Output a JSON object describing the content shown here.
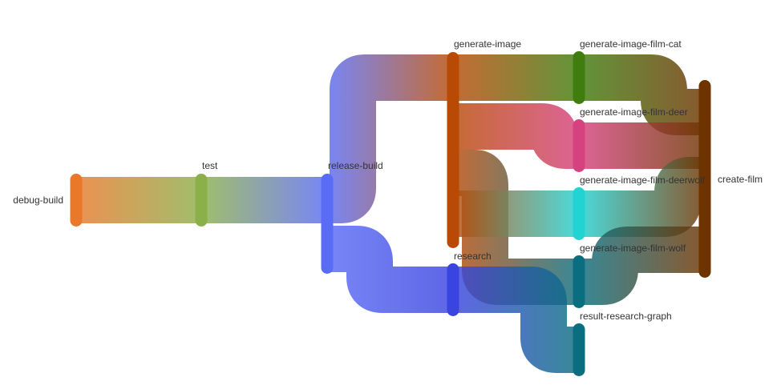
{
  "chart_data": {
    "type": "sankey",
    "nodes": [
      {
        "id": "debug-build",
        "label": "debug-build",
        "color": "#E8792A"
      },
      {
        "id": "test",
        "label": "test",
        "color": "#8BB04A"
      },
      {
        "id": "release-build",
        "label": "release-build",
        "color": "#5A6BF5"
      },
      {
        "id": "generate-image",
        "label": "generate-image",
        "color": "#B84A06"
      },
      {
        "id": "research",
        "label": "research",
        "color": "#3A44E0"
      },
      {
        "id": "generate-image-film-cat",
        "label": "generate-image-film-cat",
        "color": "#3F7D0E"
      },
      {
        "id": "generate-image-film-deer",
        "label": "generate-image-film-deer",
        "color": "#D6417F"
      },
      {
        "id": "generate-image-film-deerwolf",
        "label": "generate-image-film-deerwolf",
        "color": "#22D3D3"
      },
      {
        "id": "generate-image-film-wolf",
        "label": "generate-image-film-wolf",
        "color": "#0B6E80"
      },
      {
        "id": "result-research-graph",
        "label": "result-research-graph",
        "color": "#0B6E80"
      },
      {
        "id": "create-film",
        "label": "create-film",
        "color": "#6E3400"
      }
    ],
    "links": [
      {
        "source": "debug-build",
        "target": "test",
        "value": 4
      },
      {
        "source": "test",
        "target": "release-build",
        "value": 4
      },
      {
        "source": "release-build",
        "target": "generate-image",
        "value": 3
      },
      {
        "source": "release-build",
        "target": "research",
        "value": 2
      },
      {
        "source": "generate-image",
        "target": "generate-image-film-cat",
        "value": 1
      },
      {
        "source": "generate-image",
        "target": "generate-image-film-deer",
        "value": 1
      },
      {
        "source": "generate-image",
        "target": "generate-image-film-wolf",
        "value": 1
      },
      {
        "source": "generate-image",
        "target": "generate-image-film-deerwolf",
        "value": 1
      },
      {
        "source": "research",
        "target": "generate-image-film-deerwolf",
        "value": 1
      },
      {
        "source": "research",
        "target": "result-research-graph",
        "value": 1
      },
      {
        "source": "generate-image-film-cat",
        "target": "create-film",
        "value": 1
      },
      {
        "source": "generate-image-film-deer",
        "target": "create-film",
        "value": 1
      },
      {
        "source": "generate-image-film-deerwolf",
        "target": "create-film",
        "value": 1
      },
      {
        "source": "generate-image-film-wolf",
        "target": "create-film",
        "value": 1
      }
    ]
  }
}
